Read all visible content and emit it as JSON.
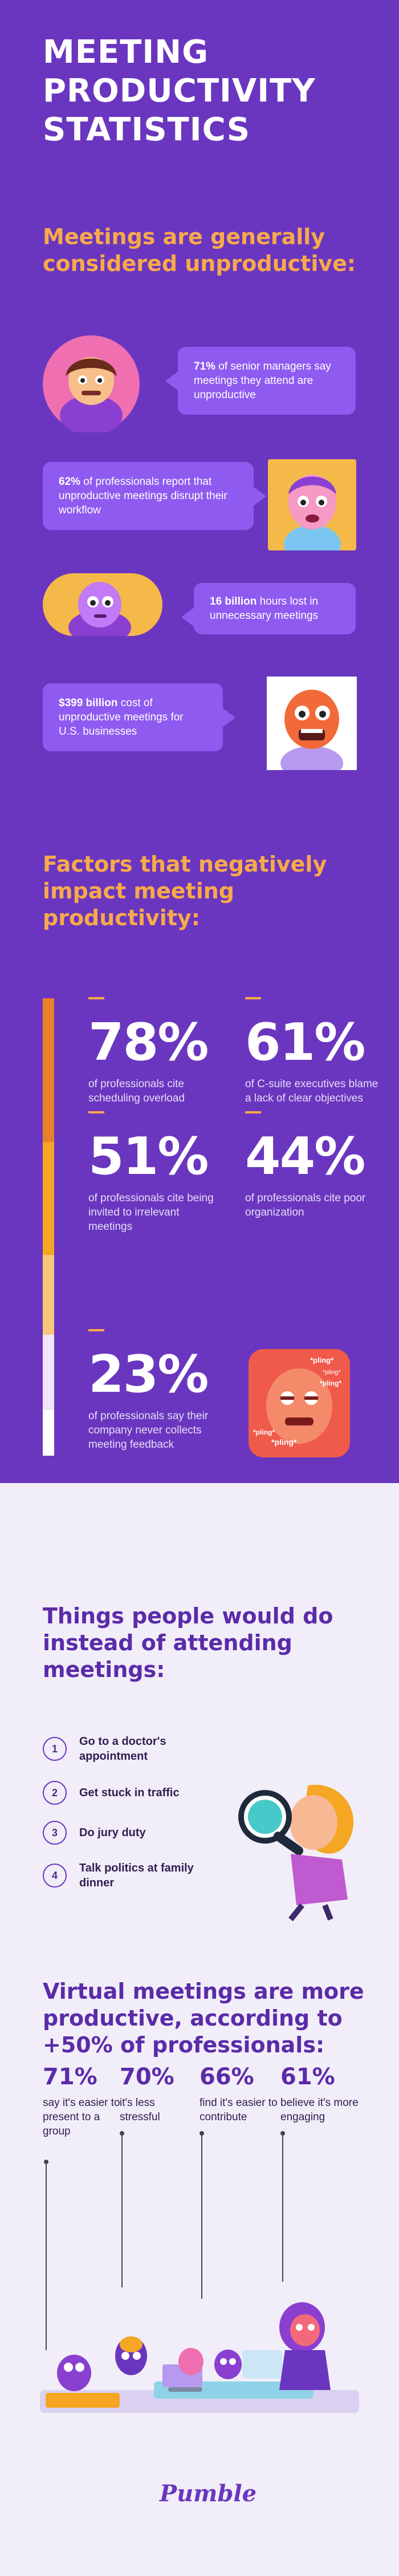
{
  "header": {
    "title": "MEETING PRODUCTIVITY STATISTICS"
  },
  "section1": {
    "title": "Meetings are generally considered unproductive:",
    "bubbles": [
      {
        "bold": "71%",
        "text": " of senior managers say meetings they attend are unproductive"
      },
      {
        "bold": "62%",
        "text": " of professionals report that unproductive meetings disrupt their workflow"
      },
      {
        "bold": "16 billion",
        "text": " hours lost in unnecessary meetings"
      },
      {
        "bold": "$399 billion",
        "text": " cost of unproductive meetings for U.S. businesses"
      }
    ]
  },
  "section2": {
    "title": "Factors that negatively impact meeting productivity:",
    "stats": [
      {
        "value": "78%",
        "desc": "of professionals cite scheduling overload"
      },
      {
        "value": "61%",
        "desc": "of C-suite executives blame a lack of clear objectives"
      },
      {
        "value": "51%",
        "desc": "of professionals cite being invited to irrelevant meetings"
      },
      {
        "value": "44%",
        "desc": "of professionals cite poor organization"
      },
      {
        "value": "23%",
        "desc": "of professionals say their company never collects meeting feedback"
      }
    ],
    "pling_labels": [
      "*pling*",
      "*pling*",
      "*pling*",
      "*pling*",
      "*pling*"
    ]
  },
  "section3": {
    "title": "Things people would do instead of attending meetings:",
    "items": [
      {
        "n": "1",
        "text": "Go to a doctor's appointment"
      },
      {
        "n": "2",
        "text": "Get stuck in traffic"
      },
      {
        "n": "3",
        "text": "Do jury duty"
      },
      {
        "n": "4",
        "text": "Talk politics at family dinner"
      }
    ]
  },
  "section4": {
    "title": "Virtual meetings are more productive, according to +50% of professionals:",
    "stats": [
      {
        "value": "71%",
        "desc": "say it's easier to present to a group"
      },
      {
        "value": "70%",
        "desc": "it's less stressful"
      },
      {
        "value": "66%",
        "desc": "find it's easier to contribute"
      },
      {
        "value": "61%",
        "desc": "believe it's more engaging"
      }
    ]
  },
  "footer": {
    "logo": "Pumble"
  },
  "colors": {
    "purple": "#6a36bf",
    "bubble": "#8f5af0",
    "orange": "#f8a94a",
    "lavender": "#f2eef9"
  }
}
